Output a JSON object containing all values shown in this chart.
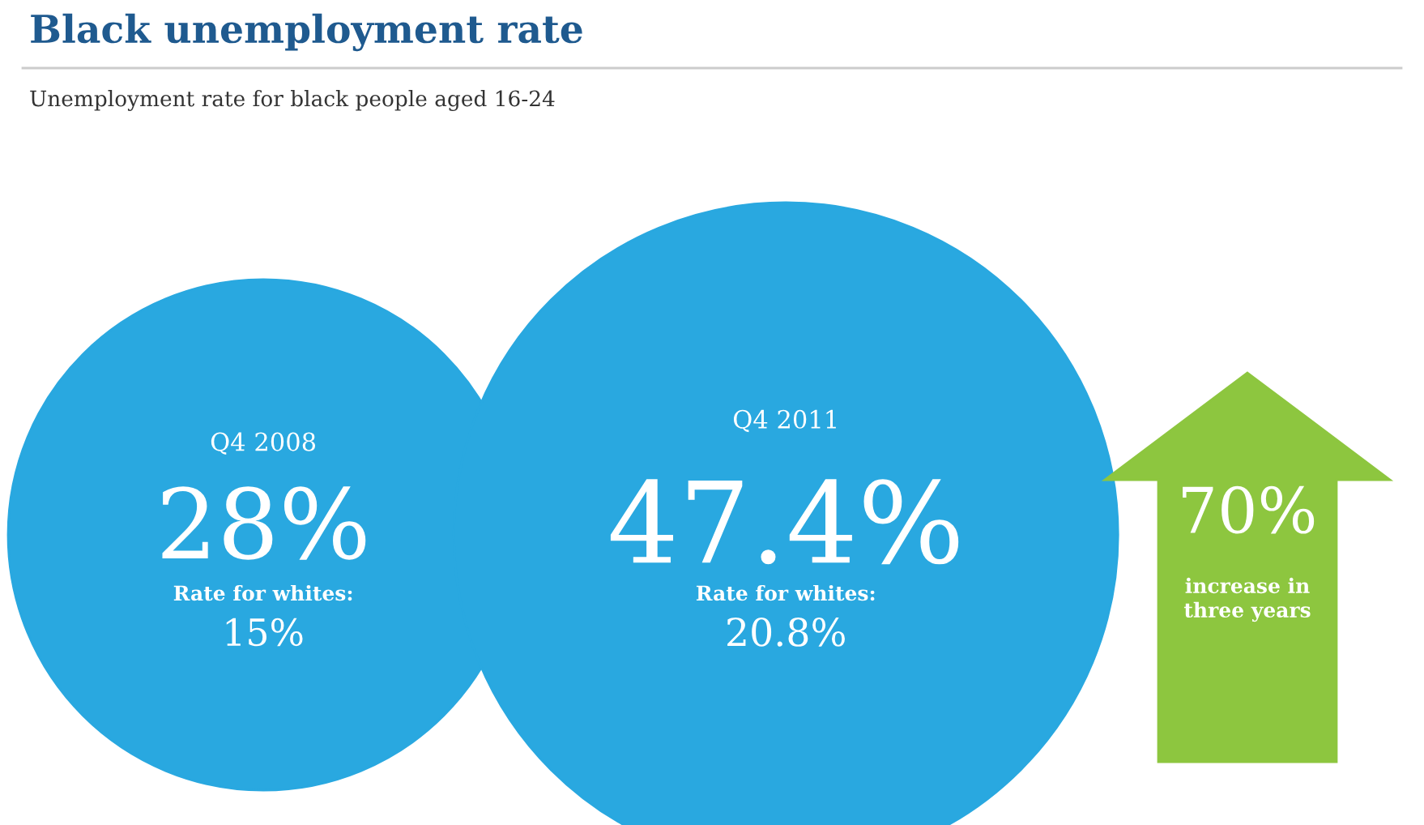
{
  "chart_data": {
    "type": "other",
    "title": "Black unemployment rate",
    "subtitle": "Unemployment rate for black people aged 16-24",
    "categories": [
      "Q4 2008",
      "Q4 2011"
    ],
    "series": [
      {
        "values": [
          28,
          47.4
        ],
        "value_labels": [
          "28%",
          "47.4%"
        ],
        "color": "#29a8e0"
      },
      {
        "name": "Rate for whites:",
        "values": [
          15,
          20.8
        ],
        "value_labels": [
          "15%",
          "20.8%"
        ]
      }
    ],
    "annotations": [
      "70%",
      "increase in three years"
    ]
  }
}
